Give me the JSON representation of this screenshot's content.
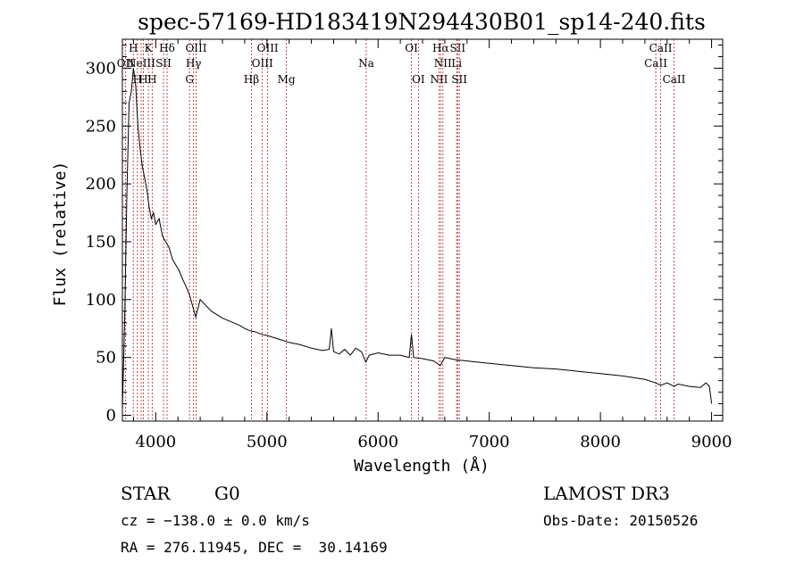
{
  "chart_data": {
    "type": "line",
    "title": "spec-57169-HD183419N294430B01_sp14-240.fits",
    "xlabel": "Wavelength (Å)",
    "ylabel": "Flux (relative)",
    "xlim": [
      3700,
      9100
    ],
    "ylim": [
      -5,
      325
    ],
    "x_ticks": [
      4000,
      5000,
      6000,
      7000,
      8000,
      9000
    ],
    "y_ticks": [
      0,
      50,
      100,
      150,
      200,
      250,
      300
    ],
    "grid": false,
    "series": [
      {
        "name": "spectrum",
        "x": [
          3700,
          3720,
          3740,
          3760,
          3780,
          3800,
          3820,
          3840,
          3860,
          3880,
          3900,
          3920,
          3940,
          3960,
          3980,
          4000,
          4030,
          4060,
          4090,
          4120,
          4150,
          4180,
          4210,
          4240,
          4270,
          4300,
          4330,
          4360,
          4400,
          4450,
          4500,
          4550,
          4600,
          4650,
          4700,
          4750,
          4800,
          4850,
          4900,
          4950,
          5000,
          5100,
          5200,
          5300,
          5400,
          5500,
          5560,
          5580,
          5600,
          5650,
          5700,
          5750,
          5800,
          5850,
          5890,
          5920,
          6000,
          6100,
          6200,
          6280,
          6300,
          6320,
          6400,
          6500,
          6560,
          6600,
          6700,
          6800,
          7000,
          7200,
          7400,
          7600,
          7800,
          8000,
          8200,
          8400,
          8498,
          8542,
          8600,
          8662,
          8700,
          8800,
          8900,
          8950,
          8980,
          9000
        ],
        "y": [
          5,
          80,
          190,
          270,
          280,
          300,
          285,
          250,
          230,
          215,
          205,
          195,
          180,
          170,
          175,
          165,
          170,
          155,
          150,
          145,
          135,
          130,
          125,
          118,
          112,
          105,
          95,
          85,
          100,
          95,
          90,
          87,
          84,
          82,
          80,
          78,
          75,
          73,
          72,
          70,
          69,
          66,
          63,
          61,
          58,
          56,
          57,
          75,
          55,
          53,
          57,
          52,
          58,
          55,
          46,
          52,
          54,
          52,
          52,
          50,
          70,
          50,
          49,
          47,
          43,
          50,
          48,
          47,
          45,
          43,
          41,
          40,
          38,
          36,
          34,
          31,
          28,
          26,
          28,
          25,
          27,
          25,
          24,
          28,
          25,
          10
        ]
      }
    ],
    "line_markers": [
      {
        "x": 3727,
        "row": 2,
        "label": "OII"
      },
      {
        "x": 3798,
        "row": 1,
        "label": "H"
      },
      {
        "x": 3835,
        "row": 3,
        "label": "H"
      },
      {
        "x": 3869,
        "row": 2,
        "label": "NeIII"
      },
      {
        "x": 3889,
        "row": 3,
        "label": "H"
      },
      {
        "x": 3934,
        "row": 1,
        "label": "K"
      },
      {
        "x": 3968,
        "row": 3,
        "label": "H"
      },
      {
        "x": 4070,
        "row": 2,
        "label": "SII"
      },
      {
        "x": 4102,
        "row": 1,
        "label": "Hδ"
      },
      {
        "x": 4304,
        "row": 3,
        "label": "G"
      },
      {
        "x": 4340,
        "row": 2,
        "label": "Hγ"
      },
      {
        "x": 4363,
        "row": 1,
        "label": "OIII"
      },
      {
        "x": 4861,
        "row": 3,
        "label": "Hβ"
      },
      {
        "x": 4959,
        "row": 2,
        "label": "OIII"
      },
      {
        "x": 5007,
        "row": 1,
        "label": "OIII"
      },
      {
        "x": 5175,
        "row": 3,
        "label": "Mg"
      },
      {
        "x": 5893,
        "row": 2,
        "label": "Na"
      },
      {
        "x": 6300,
        "row": 1,
        "label": "OI"
      },
      {
        "x": 6363,
        "row": 3,
        "label": "OI"
      },
      {
        "x": 6548,
        "row": 3,
        "label": "NII"
      },
      {
        "x": 6563,
        "row": 1,
        "label": "Hα"
      },
      {
        "x": 6583,
        "row": 2,
        "label": "NII"
      },
      {
        "x": 6707,
        "row": 2,
        "label": "Li"
      },
      {
        "x": 6716,
        "row": 1,
        "label": "SII"
      },
      {
        "x": 6731,
        "row": 3,
        "label": "SII"
      },
      {
        "x": 8498,
        "row": 2,
        "label": "CaII"
      },
      {
        "x": 8542,
        "row": 1,
        "label": "CaII"
      },
      {
        "x": 8662,
        "row": 3,
        "label": "CaII"
      }
    ]
  },
  "info": {
    "object_class": "STAR",
    "subclass": "G0",
    "survey": "LAMOST DR3",
    "redshift": "cz = −138.0 ± 0.0 km/s",
    "obs_date": "Obs-Date: 20150526",
    "coords": "RA = 276.11945, DEC =  30.14169"
  },
  "colors": {
    "spectrum": "#000000",
    "marker_line": "#b22222",
    "axes": "#000000"
  }
}
